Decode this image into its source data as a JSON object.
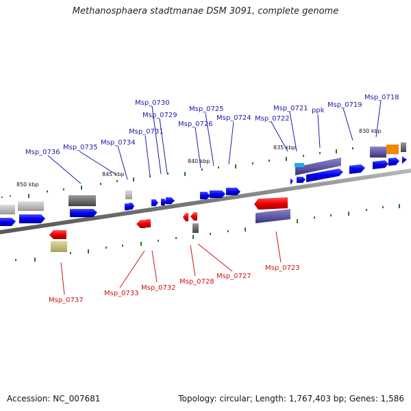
{
  "title": "Methanosphaera stadtmanae DSM 3091, complete genome",
  "footer": {
    "accession": "Accession: NC_007681",
    "summary": "Topology: circular; Length: 1,767,403 bp; Genes: 1,586"
  },
  "kbp_labels": [
    "850 kbp",
    "845 kbp",
    "840 kbp",
    "835 kbp",
    "830 kbp"
  ],
  "top_labels": [
    "Msp_0736",
    "Msp_0735",
    "Msp_0734",
    "Msp_0731",
    "Msp_0730",
    "Msp_0729",
    "Msp_0726",
    "Msp_0725",
    "Msp_0724",
    "Msp_0722",
    "Msp_0721",
    "ppk",
    "Msp_0719",
    "Msp_0718"
  ],
  "bottom_labels": [
    "Msp_0737",
    "Msp_0733",
    "Msp_0732",
    "Msp_0728",
    "Msp_0727",
    "Msp_0723"
  ],
  "colors": {
    "forward_gene": "#0000ee",
    "reverse_gene": "#ee0000",
    "top_label": "#1a1aa6",
    "bottom_label": "#cc1111",
    "tick": "#1f7a1f",
    "backbone": "#8a8a8a"
  }
}
